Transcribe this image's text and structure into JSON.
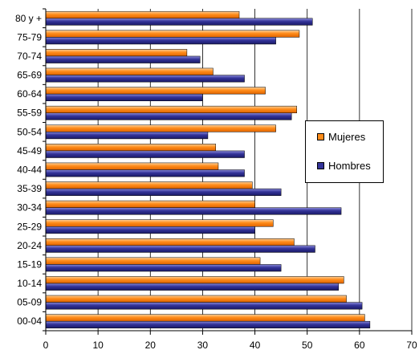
{
  "chart_data": {
    "type": "bar",
    "orientation": "horizontal",
    "categories": [
      "80 y +",
      "75-79",
      "70-74",
      "65-69",
      "60-64",
      "55-59",
      "50-54",
      "45-49",
      "40-44",
      "35-39",
      "30-34",
      "25-29",
      "20-24",
      "15-19",
      "10-14",
      "05-09",
      "00-04"
    ],
    "series": [
      {
        "name": "Mujeres",
        "color": "#FF8C1A",
        "values": [
          37,
          48.5,
          27,
          32,
          42,
          48,
          44,
          32.5,
          33,
          39.5,
          40,
          43.5,
          47.5,
          41,
          57,
          57.5,
          61
        ]
      },
      {
        "name": "Hombres",
        "color": "#333399",
        "values": [
          51,
          44,
          29.5,
          38,
          30,
          47,
          31,
          38,
          38,
          45,
          56.5,
          40,
          51.5,
          45,
          56,
          60.5,
          62
        ]
      }
    ],
    "xlim": [
      0,
      70
    ],
    "x_ticks": [
      0,
      10,
      20,
      30,
      40,
      50,
      60,
      70
    ],
    "grid": "vertical",
    "legend_position": "right"
  }
}
